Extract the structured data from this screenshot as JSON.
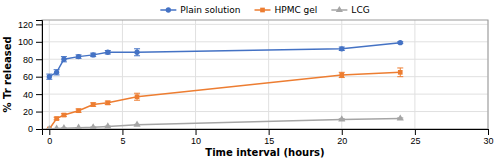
{
  "chart_data": {
    "type": "line",
    "x": [
      0,
      0.5,
      1,
      2,
      3,
      4,
      6,
      20,
      24
    ],
    "series": [
      {
        "name": "Plain solution",
        "color": "#4472c4",
        "marker": "circle",
        "values": [
          60,
          65,
          80,
          83,
          85,
          88,
          88,
          92,
          99
        ],
        "errors": [
          3,
          3,
          3,
          2,
          2,
          2,
          4,
          2,
          1
        ]
      },
      {
        "name": "HPMC gel",
        "color": "#ed7d31",
        "marker": "square",
        "values": [
          0,
          12,
          16,
          21,
          28,
          30,
          37,
          62,
          65
        ],
        "errors": [
          0,
          1.5,
          1.5,
          2,
          2,
          2,
          4,
          3,
          5
        ]
      },
      {
        "name": "LCG",
        "color": "#a5a5a5",
        "marker": "triangle",
        "values": [
          0,
          0.5,
          1,
          1.5,
          2,
          3,
          5,
          11,
          12
        ],
        "errors": [
          0,
          0.2,
          0.2,
          0.2,
          0.3,
          0.3,
          0.3,
          0.8,
          0.8
        ]
      }
    ],
    "xlabel": "Time interval (hours)",
    "ylabel": "% Tr released",
    "xlim": [
      -0.5,
      30
    ],
    "ylim": [
      0,
      125
    ],
    "xticks": [
      0,
      5,
      10,
      15,
      20,
      25,
      30
    ],
    "yticks": [
      0,
      20,
      40,
      60,
      80,
      100,
      120
    ],
    "grid": true,
    "legend": "top"
  }
}
